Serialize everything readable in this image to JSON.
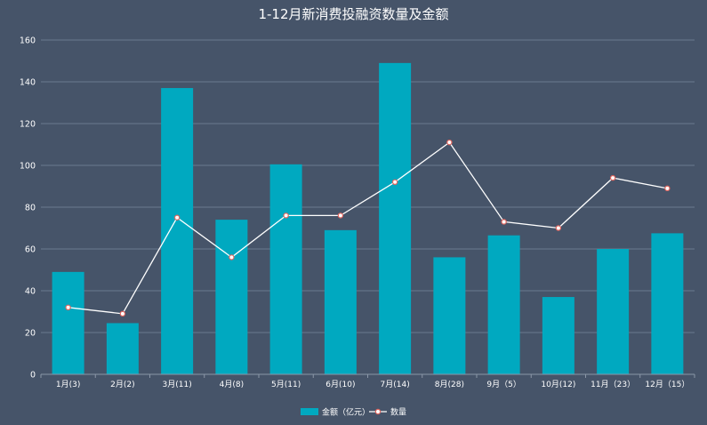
{
  "chart_data": {
    "type": "bar",
    "title": "1-12月新消费投融资数量及金额",
    "categories": [
      "1月(3)",
      "2月(2)",
      "3月(11)",
      "4月(8)",
      "5月(11)",
      "6月(10)",
      "7月(14)",
      "8月(28)",
      "9月（5）",
      "10月(12)",
      "11月（23）",
      "12月（15）"
    ],
    "series": [
      {
        "name": "金额（亿元）",
        "type": "bar",
        "color": "#00A9C0",
        "values": [
          49,
          24.5,
          137,
          74,
          100.5,
          69,
          149,
          56,
          66.5,
          37,
          60,
          67.5
        ]
      },
      {
        "name": "数量",
        "type": "line",
        "color": "#FFFFFF",
        "marker_color": "#E0655E",
        "values": [
          32,
          29,
          75,
          56,
          76,
          76,
          92,
          111,
          73,
          70,
          94,
          89
        ]
      }
    ],
    "ylim": [
      0,
      160
    ],
    "yticks": [
      0,
      20,
      40,
      60,
      80,
      100,
      120,
      140,
      160
    ],
    "xlabel": "",
    "ylabel": "",
    "grid": true,
    "legend_position": "bottom-center",
    "colors": {
      "background": "#465469",
      "grid": "#6B7A8F",
      "axis_text": "#FFFFFF"
    }
  }
}
